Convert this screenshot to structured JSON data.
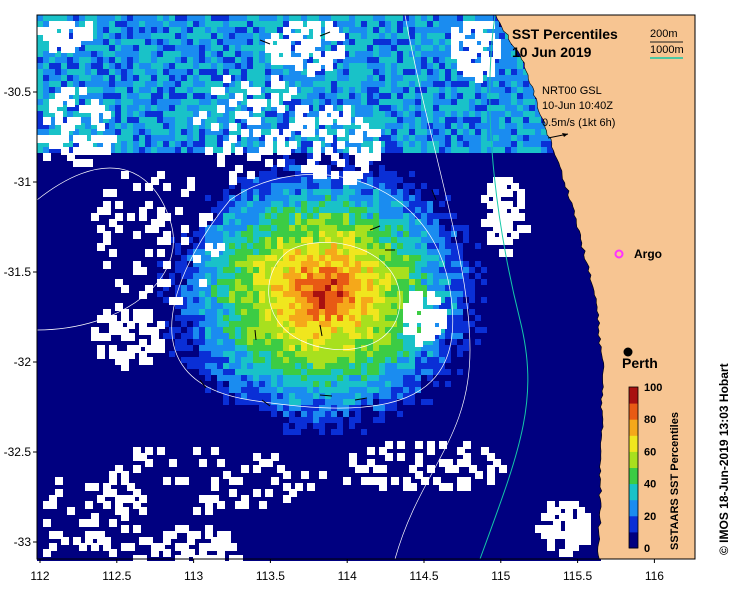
{
  "map": {
    "title_line1": "SST Percentiles",
    "title_line2": "10 Jun 2019",
    "contour_legend": [
      {
        "label": "200m",
        "color": "#1a1a1a"
      },
      {
        "label": "1000m",
        "color": "#14c8a8"
      }
    ],
    "current_info": {
      "line1": "NRT00 GSL",
      "line2": "10-Jun 10:40Z",
      "line3": "0.5m/s (1kt 6h)"
    },
    "places": [
      {
        "name": "Argo",
        "marker": "argo-float-marker",
        "color": "#ff33ff"
      },
      {
        "name": "Perth",
        "marker": "city-marker",
        "color": "#000000"
      }
    ],
    "x_ticks": [
      "112",
      "112.5",
      "113",
      "113.5",
      "114",
      "114.5",
      "115",
      "115.5",
      "116"
    ],
    "y_ticks": [
      "-30.5",
      "-31",
      "-31.5",
      "-32",
      "-32.5",
      "-33"
    ],
    "colorbar": {
      "label": "SSTAARS SST Percentiles",
      "ticks": [
        "0",
        "20",
        "40",
        "60",
        "80",
        "100"
      ],
      "colors": [
        "#000080",
        "#0a2fd6",
        "#1a8cf0",
        "#19c2c8",
        "#3ccc44",
        "#a8e01e",
        "#f0e61e",
        "#f5a81a",
        "#e85a14",
        "#a81010"
      ]
    },
    "credit": "© IMOS 18-Jun-2019 13:03 Hobart",
    "land_color": "#f7c592",
    "cloud_color": "#ffffff"
  }
}
